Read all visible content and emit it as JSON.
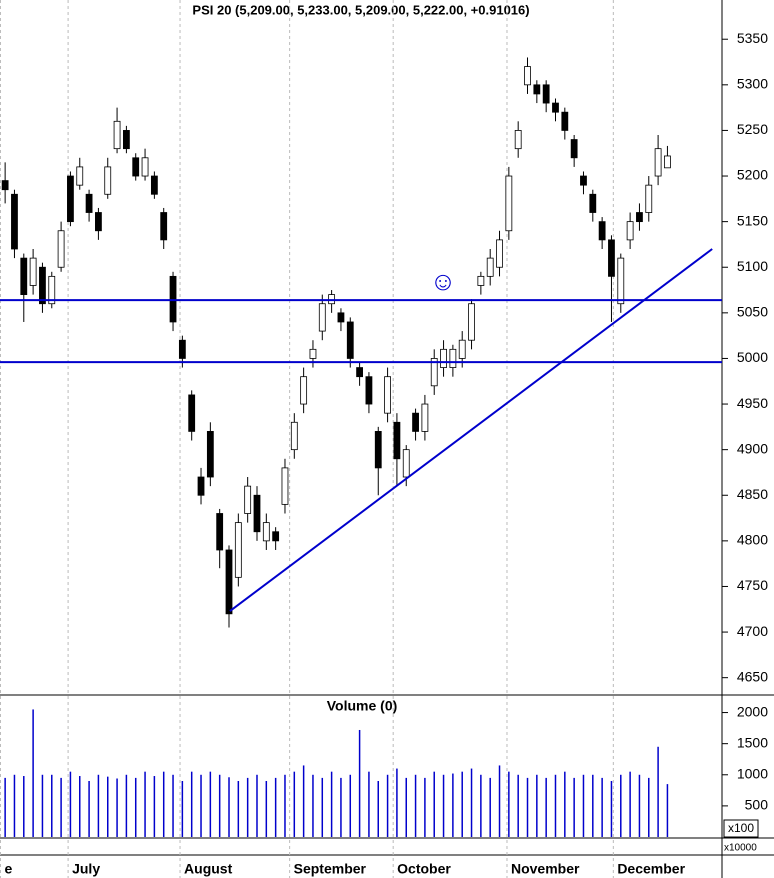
{
  "chart_data": [
    {
      "type": "candlestick",
      "title": "PSI 20 (5,209.00, 5,233.00, 5,209.00, 5,222.00, +0.91016)",
      "x": [
        0,
        1,
        2,
        3,
        4,
        5,
        6,
        7,
        8,
        9,
        10,
        11,
        12,
        13,
        14,
        15,
        16,
        17,
        18,
        19,
        20,
        21,
        22,
        23,
        24,
        25,
        26,
        27,
        28,
        29,
        30,
        31,
        32,
        33,
        34,
        35,
        36,
        37,
        38,
        39,
        40,
        41,
        42,
        43,
        44,
        45,
        46,
        47,
        48,
        49,
        50,
        51,
        52,
        53,
        54,
        55,
        56,
        57,
        58,
        59,
        60,
        61,
        62,
        63,
        64,
        65,
        66,
        67,
        68,
        69,
        70,
        71
      ],
      "open": [
        5195,
        5180,
        5110,
        5080,
        5100,
        5060,
        5100,
        5200,
        5190,
        5180,
        5160,
        5180,
        5230,
        5250,
        5220,
        5200,
        5200,
        5160,
        5090,
        5020,
        4960,
        4870,
        4920,
        4830,
        4790,
        4760,
        4830,
        4850,
        4800,
        4810,
        4840,
        4900,
        4950,
        5000,
        5030,
        5060,
        5050,
        5040,
        4990,
        4980,
        4920,
        4940,
        4930,
        4870,
        4940,
        4920,
        4970,
        4990,
        4990,
        5000,
        5020,
        5080,
        5090,
        5100,
        5140,
        5230,
        5300,
        5300,
        5300,
        5280,
        5270,
        5240,
        5200,
        5180,
        5150,
        5130,
        5060,
        5130,
        5160,
        5160,
        5200,
        5209
      ],
      "high": [
        5215,
        5185,
        5115,
        5120,
        5105,
        5095,
        5150,
        5205,
        5220,
        5185,
        5165,
        5220,
        5275,
        5255,
        5225,
        5230,
        5205,
        5165,
        5095,
        5025,
        4965,
        4880,
        4930,
        4835,
        4795,
        4830,
        4870,
        4860,
        4830,
        4815,
        4890,
        4940,
        4990,
        5020,
        5070,
        5075,
        5055,
        5045,
        4995,
        4985,
        4925,
        4990,
        4940,
        4905,
        4945,
        4960,
        5010,
        5020,
        5015,
        5030,
        5065,
        5095,
        5120,
        5140,
        5210,
        5260,
        5330,
        5305,
        5305,
        5285,
        5275,
        5245,
        5205,
        5185,
        5155,
        5135,
        5115,
        5160,
        5170,
        5200,
        5245,
        5233
      ],
      "low": [
        5170,
        5110,
        5040,
        5070,
        5050,
        5055,
        5095,
        5145,
        5185,
        5150,
        5130,
        5175,
        5225,
        5225,
        5195,
        5195,
        5175,
        5120,
        5030,
        4990,
        4910,
        4840,
        4860,
        4770,
        4705,
        4750,
        4820,
        4800,
        4790,
        4790,
        4830,
        4890,
        4940,
        4990,
        5020,
        5050,
        5030,
        4990,
        4970,
        4940,
        4850,
        4930,
        4860,
        4860,
        4910,
        4910,
        4960,
        4980,
        4980,
        4990,
        5010,
        5070,
        5080,
        5090,
        5130,
        5220,
        5290,
        5280,
        5270,
        5260,
        5240,
        5210,
        5180,
        5150,
        5120,
        5040,
        5050,
        5120,
        5140,
        5150,
        5190,
        5209
      ],
      "close": [
        5185,
        5120,
        5070,
        5110,
        5060,
        5090,
        5140,
        5150,
        5210,
        5160,
        5140,
        5210,
        5260,
        5230,
        5200,
        5220,
        5180,
        5130,
        5040,
        5000,
        4920,
        4850,
        4870,
        4790,
        4720,
        4820,
        4860,
        4810,
        4820,
        4800,
        4880,
        4930,
        4980,
        5010,
        5060,
        5070,
        5040,
        5000,
        4980,
        4950,
        4880,
        4980,
        4890,
        4900,
        4920,
        4950,
        5000,
        5010,
        5010,
        5020,
        5060,
        5090,
        5110,
        5130,
        5200,
        5250,
        5320,
        5290,
        5280,
        5270,
        5250,
        5220,
        5190,
        5160,
        5130,
        5090,
        5110,
        5150,
        5150,
        5190,
        5230,
        5222
      ],
      "up_color": "#ffffff",
      "down_color": "#000000",
      "xlim": [
        -0.55,
        76.85
      ],
      "ylim": [
        4631,
        5393
      ],
      "yticks": [
        4650,
        4700,
        4750,
        4800,
        4850,
        4900,
        4950,
        5000,
        5050,
        5100,
        5150,
        5200,
        5250,
        5300,
        5350
      ],
      "hlines": [
        5064,
        4996
      ],
      "trendline": {
        "x": [
          24.1,
          75.8
        ],
        "y": [
          4723,
          5120
        ]
      },
      "line_color": "#0000cc"
    },
    {
      "type": "volume",
      "title": "Volume (0)",
      "values": [
        950,
        1000,
        980,
        2050,
        1000,
        1000,
        950,
        1050,
        980,
        900,
        1000,
        970,
        940,
        1000,
        950,
        1050,
        980,
        1050,
        1000,
        900,
        1050,
        1000,
        1050,
        1000,
        960,
        900,
        950,
        1000,
        900,
        950,
        1000,
        1050,
        1150,
        1000,
        950,
        1050,
        950,
        1000,
        1720,
        1050,
        900,
        1000,
        1100,
        950,
        1000,
        950,
        1050,
        1000,
        1020,
        1050,
        1100,
        1000,
        950,
        1150,
        1050,
        1000,
        950,
        1000,
        950,
        1000,
        1050,
        950,
        1000,
        1000,
        950,
        900,
        1000,
        1050,
        1000,
        950,
        1450,
        850
      ],
      "color": "#0000cc",
      "ylim": [
        0,
        2250
      ],
      "yticks": [
        500,
        1000,
        1500,
        2000
      ],
      "multiplier_labels": [
        "x100",
        "x10000"
      ],
      "xticks": [
        {
          "value": -0.5,
          "label": "e"
        },
        {
          "value": 6.75,
          "label": "July"
        },
        {
          "value": 18.75,
          "label": "August"
        },
        {
          "value": 30.5,
          "label": "September"
        },
        {
          "value": 41.6,
          "label": "October"
        },
        {
          "value": 53.8,
          "label": "November"
        },
        {
          "value": 65.2,
          "label": "December"
        }
      ]
    }
  ]
}
